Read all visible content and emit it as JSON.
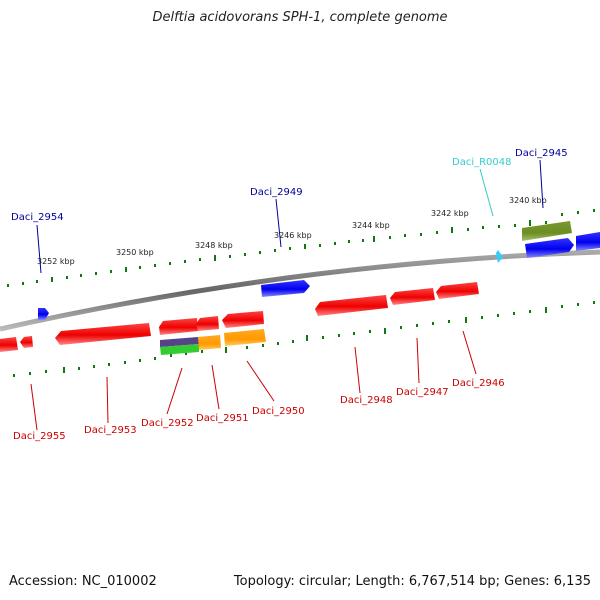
{
  "title": "Delftia acidovorans SPH-1, complete genome",
  "footer": {
    "accession": "Accession: NC_010002",
    "summary": "Topology: circular; Length: 6,767,514 bp; Genes: 6,135"
  },
  "colors": {
    "forward_gene": "#0000ee",
    "reverse_gene": "#ee0000",
    "rna_gene": "#33ccff",
    "forward_label": "#000099",
    "reverse_label": "#cc0000",
    "rna_label": "#33cccc",
    "tick": "#117711",
    "backbone": "#777777",
    "olive_feature": "#6b8e23",
    "orange_feature": "#ff9900",
    "purple_feature": "#554488",
    "green_feature": "#33cc33"
  },
  "scale_labels": [
    "3252 kbp",
    "3250 kbp",
    "3248 kbp",
    "3246 kbp",
    "3244 kbp",
    "3242 kbp",
    "3240 kbp"
  ],
  "genes_forward": [
    {
      "label": "Daci_2954"
    },
    {
      "label": "Daci_2949"
    },
    {
      "label": "Daci_R0048",
      "type": "rna"
    },
    {
      "label": "Daci_2945"
    }
  ],
  "genes_reverse": [
    {
      "label": "Daci_2955"
    },
    {
      "label": "Daci_2953"
    },
    {
      "label": "Daci_2952"
    },
    {
      "label": "Daci_2951"
    },
    {
      "label": "Daci_2950"
    },
    {
      "label": "Daci_2948"
    },
    {
      "label": "Daci_2947"
    },
    {
      "label": "Daci_2946"
    }
  ]
}
